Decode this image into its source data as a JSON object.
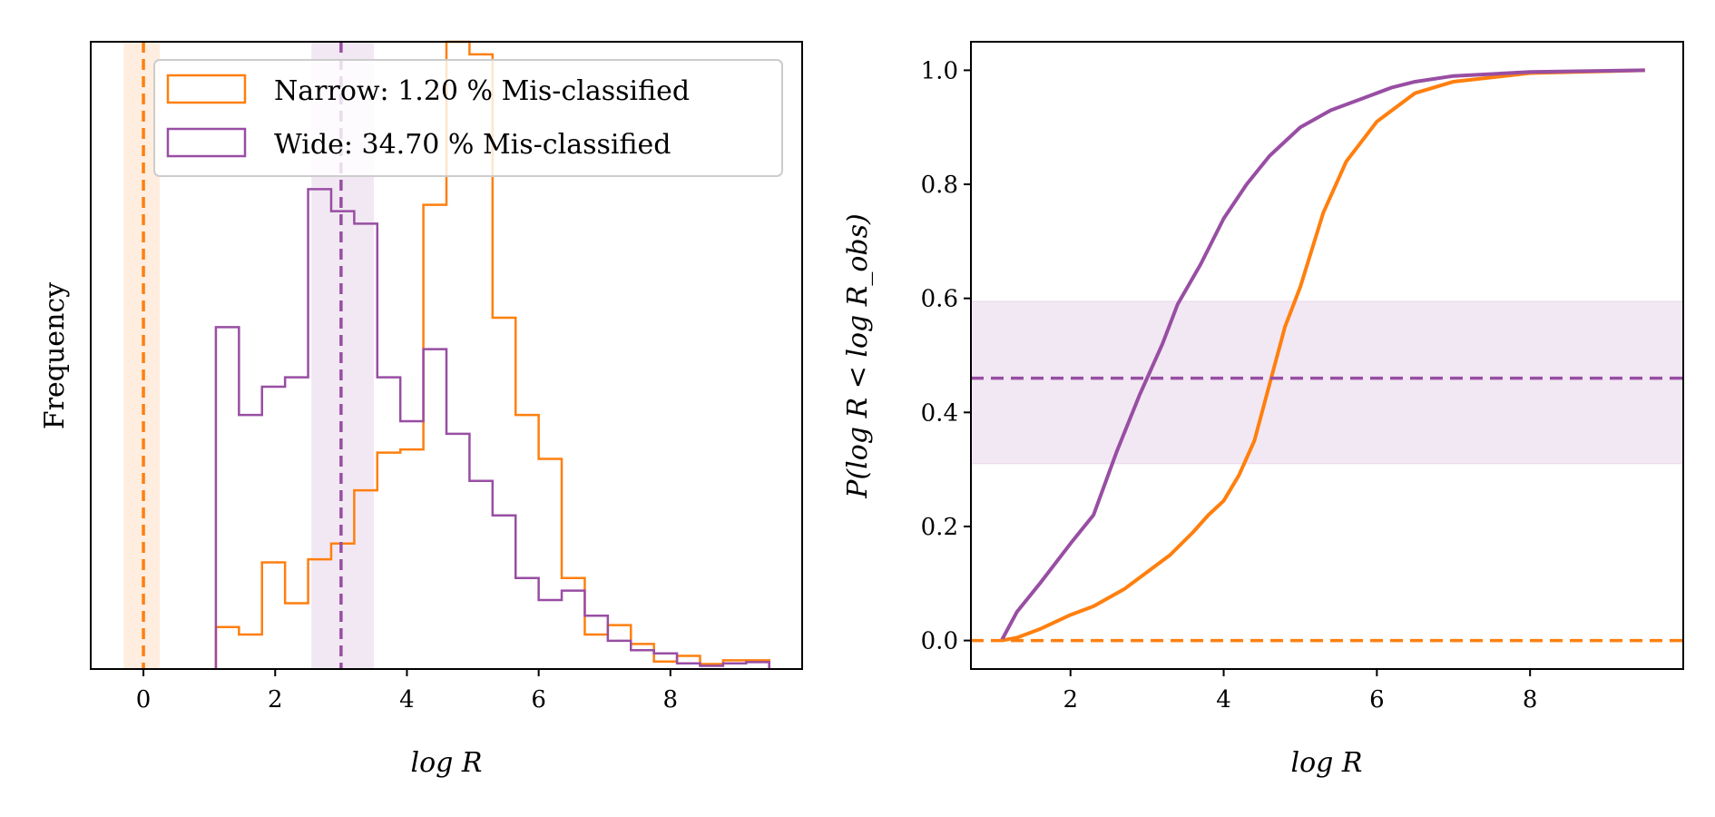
{
  "chart_data": [
    {
      "type": "histogram",
      "xlabel": "log R",
      "ylabel": "Frequency",
      "xlim": [
        -0.8,
        10.0
      ],
      "ylim": [
        0,
        100
      ],
      "x_ticks": [
        "0",
        "2",
        "4",
        "6",
        "8"
      ],
      "y_ticks_shown": false,
      "grid": false,
      "legend": {
        "position": "upper-right",
        "entries": [
          {
            "label": "Narrow: 1.20 % Mis-classified",
            "color": "#ff7f0e"
          },
          {
            "label": "Wide: 34.70 % Mis-classified",
            "color": "#984ea3"
          }
        ]
      },
      "bin_edges": [
        1.1,
        1.45,
        1.8,
        2.15,
        2.5,
        2.85,
        3.2,
        3.55,
        3.9,
        4.25,
        4.6,
        4.95,
        5.3,
        5.65,
        6.0,
        6.35,
        6.7,
        7.05,
        7.4,
        7.75,
        8.1,
        8.45,
        8.8,
        9.15,
        9.5
      ],
      "series": [
        {
          "name": "Narrow",
          "color": "#ff7f0e",
          "counts": [
            6.7,
            5.5,
            17,
            10.5,
            17.5,
            20,
            28.5,
            34.5,
            35,
            74,
            100,
            98,
            56,
            40.5,
            33.5,
            14.5,
            5.5,
            7,
            4,
            1.2,
            2.1,
            0.8,
            1.4,
            1.4
          ],
          "reference_line": 0.0,
          "reference_band": [
            -0.3,
            0.25
          ]
        },
        {
          "name": "Wide",
          "color": "#984ea3",
          "counts": [
            54.5,
            40.5,
            45,
            46.5,
            76.5,
            73,
            71,
            46.5,
            39.5,
            51,
            37.5,
            30,
            24.5,
            14.5,
            11,
            12.5,
            8.5,
            4.5,
            3,
            2.5,
            0.9,
            0.5,
            0.9,
            1.1
          ],
          "reference_line": 3.0,
          "reference_band": [
            2.55,
            3.5
          ]
        }
      ]
    },
    {
      "type": "line",
      "xlabel": "log R",
      "ylabel": "P(log R < log R_obs)",
      "xlim": [
        0.7,
        10.0
      ],
      "ylim": [
        -0.05,
        1.05
      ],
      "x_ticks": [
        "2",
        "4",
        "6",
        "8"
      ],
      "y_ticks": [
        "0.0",
        "0.2",
        "0.4",
        "0.6",
        "0.8",
        "1.0"
      ],
      "grid": false,
      "series": [
        {
          "name": "Narrow",
          "color": "#ff7f0e",
          "x": [
            1.1,
            1.3,
            1.6,
            2.0,
            2.3,
            2.7,
            3.0,
            3.3,
            3.6,
            3.8,
            4.0,
            4.2,
            4.4,
            4.6,
            4.8,
            5.0,
            5.3,
            5.6,
            6.0,
            6.5,
            7.0,
            8.0,
            9.5
          ],
          "y": [
            0.0,
            0.005,
            0.02,
            0.045,
            0.06,
            0.09,
            0.12,
            0.15,
            0.19,
            0.22,
            0.245,
            0.29,
            0.35,
            0.45,
            0.55,
            0.62,
            0.75,
            0.84,
            0.91,
            0.96,
            0.98,
            0.995,
            1.0
          ],
          "reference_line": 0.0,
          "reference_band": [
            0.0,
            0.0
          ]
        },
        {
          "name": "Wide",
          "color": "#984ea3",
          "x": [
            1.1,
            1.3,
            1.6,
            2.0,
            2.3,
            2.6,
            2.9,
            3.2,
            3.4,
            3.7,
            4.0,
            4.3,
            4.6,
            5.0,
            5.4,
            5.8,
            6.2,
            6.5,
            7.0,
            8.0,
            9.5
          ],
          "y": [
            0.0,
            0.05,
            0.1,
            0.17,
            0.22,
            0.33,
            0.43,
            0.52,
            0.59,
            0.66,
            0.74,
            0.8,
            0.85,
            0.9,
            0.93,
            0.95,
            0.97,
            0.98,
            0.99,
            0.997,
            1.0
          ],
          "reference_line": 0.46,
          "reference_band": [
            0.31,
            0.595
          ]
        }
      ]
    }
  ]
}
